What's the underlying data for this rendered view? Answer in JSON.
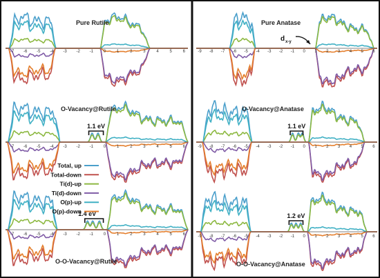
{
  "chart_data": [
    {
      "type": "area",
      "title": "Pure Rutile",
      "shift": 0,
      "gap_label": "",
      "x_ticks": [
        "-7",
        "-6",
        "-5",
        "-4",
        "-3",
        "-2",
        "-1",
        "0",
        "1",
        "2",
        "3",
        "4",
        "5",
        "6"
      ],
      "bottom_title": ""
    },
    {
      "type": "area",
      "title": "Pure Anatase",
      "shift": 0,
      "gap_label": "",
      "x_ticks": [
        "-9",
        "-8",
        "-7",
        "-6",
        "-5",
        "-4",
        "-3",
        "-2",
        "-1",
        "0",
        "1",
        "2",
        "3",
        "4",
        "5",
        "6"
      ],
      "bottom_title": "",
      "annotation": {
        "main": "d",
        "sub": "x-y"
      }
    },
    {
      "type": "area",
      "title": "O-Vacancy@Rutile",
      "shift": 0,
      "gap_label": "1.1 eV",
      "gap_range": [
        -1.2,
        -0.1
      ],
      "x_ticks": [
        "-7",
        "-6",
        "-5",
        "-4",
        "-3",
        "-2",
        "-1",
        "0",
        "1",
        "2",
        "3",
        "4",
        "5",
        "6"
      ],
      "bottom_title": ""
    },
    {
      "type": "area",
      "title": "O-Vacancy@Anatase",
      "shift": 0,
      "gap_label": "1.1 eV",
      "gap_range": [
        -1.2,
        -0.1
      ],
      "x_ticks": [
        "-9",
        "-8",
        "-7",
        "-6",
        "-5",
        "-4",
        "-3",
        "-2",
        "-1",
        "0",
        "1",
        "2",
        "3",
        "4",
        "5",
        "6"
      ],
      "bottom_title": ""
    },
    {
      "type": "area",
      "title": "",
      "shift": 0,
      "gap_label": "1.4 eV",
      "gap_range": [
        -1.5,
        -0.1
      ],
      "x_ticks": [
        "-7",
        "-6",
        "-5",
        "-4",
        "-3",
        "-2",
        "-1",
        "0",
        "1",
        "2",
        "3",
        "4",
        "5",
        "6"
      ],
      "bottom_title": "O-O-Vacancy@Rutile"
    },
    {
      "type": "area",
      "title": "",
      "shift": 0,
      "gap_label": "1.2 eV",
      "gap_range": [
        -1.3,
        -0.1
      ],
      "x_ticks": [
        "-9",
        "-8",
        "-7",
        "-6",
        "-5",
        "-4",
        "-3",
        "-2",
        "-1",
        "0",
        "1",
        "2",
        "3",
        "4",
        "5",
        "6"
      ],
      "bottom_title": "O-O-Vacancy@Anatase"
    }
  ],
  "legend": {
    "entries": [
      {
        "label": "Total, up",
        "color": "#4a9fcb"
      },
      {
        "label": "Total-down",
        "color": "#c0504d"
      },
      {
        "label": "Ti(d)-up",
        "color": "#8cb840"
      },
      {
        "label": "Ti(d)-down",
        "color": "#7f5ba6"
      },
      {
        "label": "O(p)-up",
        "color": "#3fb0c4"
      },
      {
        "label": "O(p)-down",
        "color": "#e47e2c"
      }
    ]
  }
}
